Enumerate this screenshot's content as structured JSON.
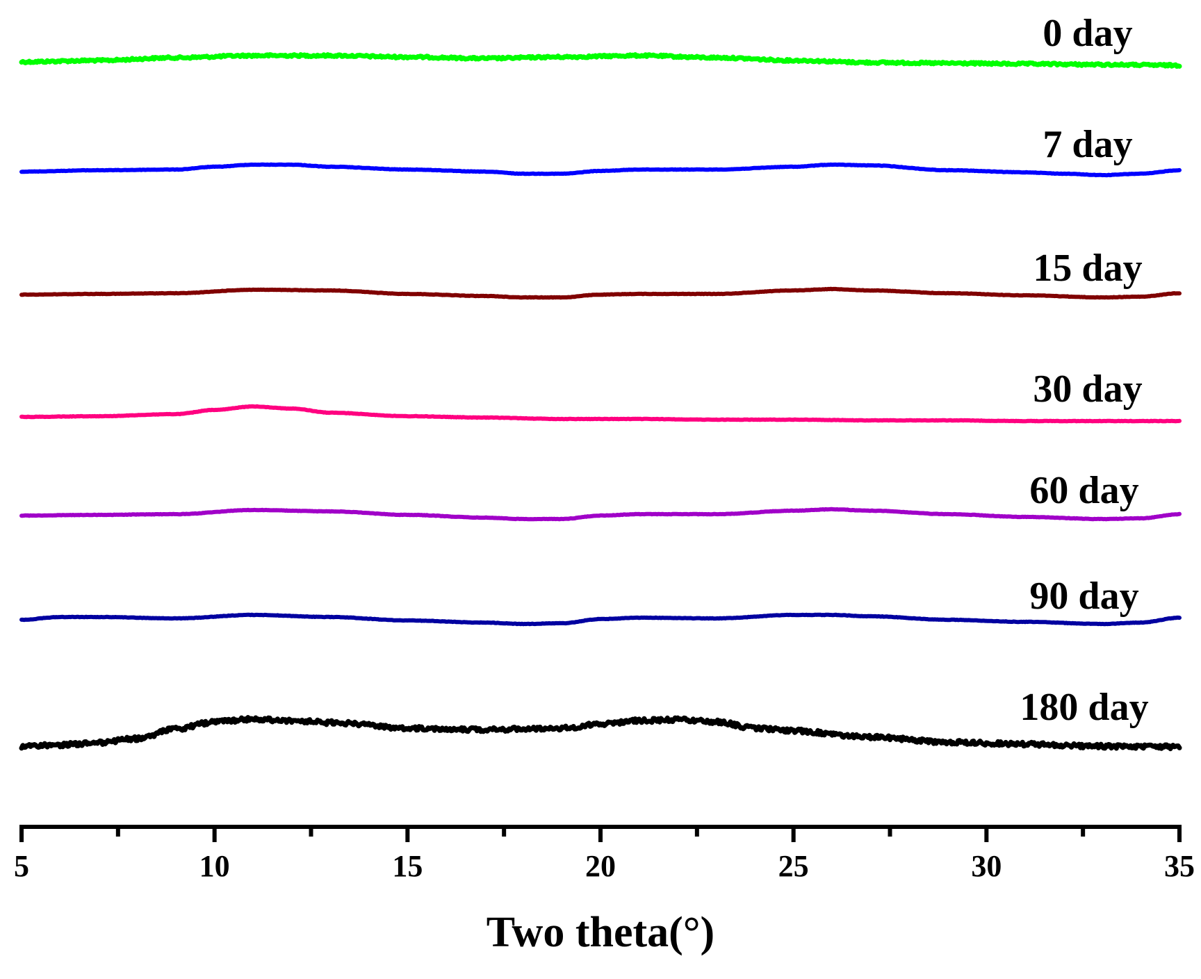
{
  "chart_data": {
    "type": "line",
    "xlabel": "Two theta(°)",
    "ylabel": "",
    "xlim": [
      5,
      35
    ],
    "x_ticks": [
      "5",
      "10",
      "15",
      "20",
      "25",
      "30",
      "35"
    ],
    "grid": false,
    "stacked_offsets": true,
    "series": [
      {
        "name": "0 day",
        "color": "#00ff00",
        "noise": 3,
        "x": [
          5,
          7,
          9,
          11,
          13,
          15,
          17,
          19,
          21,
          23,
          25,
          27,
          29,
          31,
          33,
          35
        ],
        "y": [
          0.0,
          0.2,
          0.6,
          0.9,
          0.9,
          0.7,
          0.5,
          0.7,
          0.9,
          0.6,
          0.2,
          -0.1,
          -0.2,
          -0.3,
          -0.4,
          -0.5
        ]
      },
      {
        "name": "7 day",
        "color": "#0000ff",
        "noise": 0.6,
        "x": [
          5,
          7,
          9,
          10,
          11,
          12,
          13,
          15,
          17,
          18,
          19,
          20,
          21,
          23,
          25,
          26,
          27,
          29,
          31,
          32,
          33,
          34,
          35
        ],
        "y": [
          0.0,
          0.2,
          0.3,
          0.7,
          1.0,
          1.0,
          0.7,
          0.3,
          0.0,
          -0.3,
          -0.3,
          0.1,
          0.3,
          0.3,
          0.7,
          1.0,
          0.9,
          0.2,
          -0.1,
          -0.3,
          -0.5,
          -0.3,
          0.2
        ]
      },
      {
        "name": "15 day",
        "color": "#800000",
        "noise": 0.6,
        "x": [
          5,
          7,
          9,
          11,
          13,
          15,
          17,
          18,
          19,
          20,
          21,
          23,
          25,
          26,
          27,
          29,
          31,
          33,
          34,
          35
        ],
        "y": [
          0.0,
          0.1,
          0.2,
          0.7,
          0.6,
          0.1,
          -0.2,
          -0.4,
          -0.4,
          0.0,
          0.1,
          0.1,
          0.6,
          0.8,
          0.6,
          0.2,
          -0.1,
          -0.4,
          -0.3,
          0.2
        ]
      },
      {
        "name": "30 day",
        "color": "#ff0080",
        "noise": 0.6,
        "x": [
          5,
          7,
          9,
          10,
          11,
          12,
          13,
          15,
          17,
          19,
          21,
          23,
          25,
          27,
          29,
          31,
          33,
          35
        ],
        "y": [
          0.0,
          0.1,
          0.4,
          1.0,
          1.5,
          1.2,
          0.6,
          0.1,
          -0.1,
          -0.3,
          -0.3,
          -0.4,
          -0.4,
          -0.5,
          -0.5,
          -0.6,
          -0.6,
          -0.6
        ]
      },
      {
        "name": "60 day",
        "color": "#a000c8",
        "noise": 0.6,
        "x": [
          5,
          7,
          9,
          11,
          13,
          15,
          17,
          18,
          19,
          20,
          21,
          23,
          25,
          26,
          27,
          29,
          31,
          33,
          34,
          35
        ],
        "y": [
          0.0,
          0.1,
          0.2,
          0.8,
          0.6,
          0.1,
          -0.3,
          -0.5,
          -0.5,
          0.0,
          0.2,
          0.2,
          0.7,
          0.9,
          0.7,
          0.2,
          -0.2,
          -0.5,
          -0.4,
          0.2
        ]
      },
      {
        "name": "90 day",
        "color": "#0000a0",
        "noise": 0.6,
        "x": [
          5,
          6,
          7,
          9,
          11,
          13,
          15,
          17,
          18,
          19,
          20,
          21,
          23,
          25,
          26,
          27,
          29,
          31,
          33,
          34,
          35
        ],
        "y": [
          0.0,
          0.4,
          0.4,
          0.2,
          0.7,
          0.4,
          -0.1,
          -0.4,
          -0.6,
          -0.5,
          0.1,
          0.3,
          0.2,
          0.7,
          0.7,
          0.5,
          0.0,
          -0.3,
          -0.6,
          -0.4,
          0.3
        ]
      },
      {
        "name": "180 day",
        "color": "#000000",
        "noise": 6,
        "x": [
          5,
          6,
          7,
          8,
          9,
          10,
          11,
          12,
          13,
          15,
          17,
          19,
          20,
          21,
          22,
          23,
          24,
          25,
          27,
          29,
          31,
          33,
          35
        ],
        "y": [
          0.0,
          0.2,
          0.5,
          1.1,
          2.5,
          3.5,
          3.9,
          3.7,
          3.4,
          2.6,
          2.4,
          2.6,
          3.2,
          3.7,
          3.8,
          3.5,
          2.6,
          2.2,
          1.3,
          0.6,
          0.3,
          0.0,
          -0.1
        ]
      }
    ]
  }
}
